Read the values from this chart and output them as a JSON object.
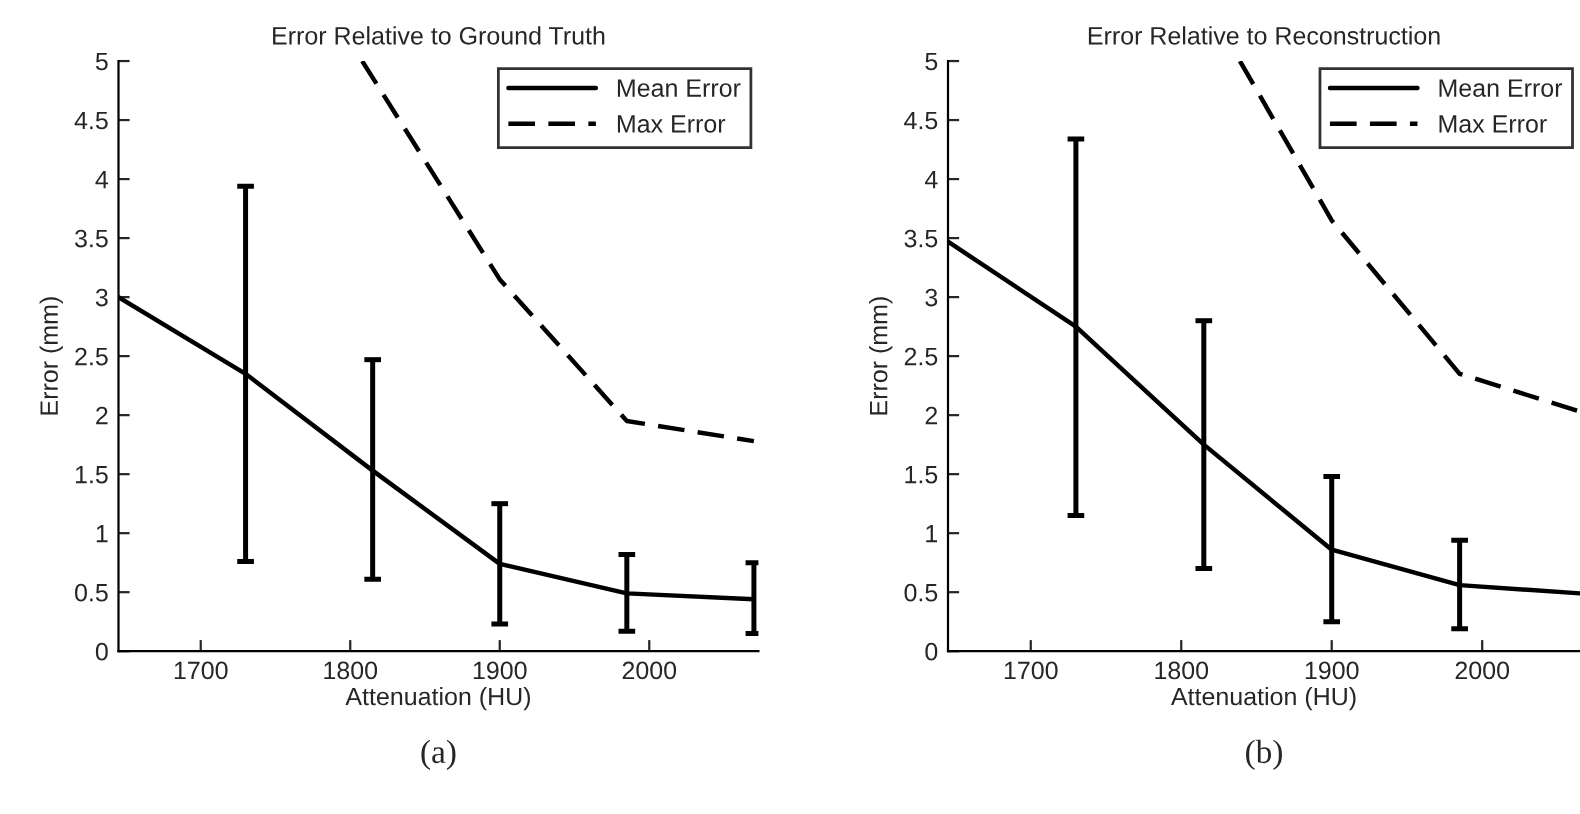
{
  "chart_data": [
    {
      "type": "line",
      "title": "Error Relative to Ground Truth",
      "xlabel": "Attenuation (HU)",
      "ylabel": "Error (mm)",
      "annotations": [
        "(a)"
      ],
      "xlim": [
        1645,
        2073
      ],
      "xticks": [
        1700,
        1800,
        1900,
        2000
      ],
      "ylim": [
        0,
        5
      ],
      "yticks": [
        0,
        0.5,
        1,
        1.5,
        2,
        2.5,
        3,
        3.5,
        4,
        4.5,
        5
      ],
      "grid": false,
      "legend": "top right",
      "series": [
        {
          "name": "Mean Error",
          "color": "#000000",
          "line_style": "solid",
          "x": [
            1645,
            1730,
            1815,
            1900,
            1985,
            2070
          ],
          "values": [
            3.0,
            2.35,
            1.53,
            0.74,
            0.49,
            0.44
          ],
          "errors": [
            null,
            [
              0.76,
              3.94
            ],
            [
              0.61,
              2.47
            ],
            [
              0.23,
              1.25
            ],
            [
              0.17,
              0.82
            ],
            [
              0.15,
              0.75
            ]
          ]
        },
        {
          "name": "Max Error",
          "color": "#000000",
          "line_style": "dashed",
          "x": [
            1808,
            1900,
            1985,
            2070
          ],
          "values": [
            5.0,
            3.15,
            1.95,
            1.78
          ]
        }
      ]
    },
    {
      "type": "line",
      "title": "Error Relative to Reconstruction",
      "xlabel": "Attenuation (HU)",
      "ylabel": "Error (mm)",
      "annotations": [
        "(b)"
      ],
      "xlim": [
        1645,
        2065
      ],
      "xticks": [
        1700,
        1800,
        1900,
        2000
      ],
      "ylim": [
        0,
        5
      ],
      "yticks": [
        0,
        0.5,
        1,
        1.5,
        2,
        2.5,
        3,
        3.5,
        4,
        4.5,
        5
      ],
      "grid": false,
      "legend": "top right",
      "series": [
        {
          "name": "Mean Error",
          "color": "#000000",
          "line_style": "solid",
          "x": [
            1645,
            1730,
            1815,
            1900,
            1985,
            2065
          ],
          "values": [
            3.47,
            2.75,
            1.75,
            0.86,
            0.56,
            0.49
          ],
          "errors": [
            null,
            [
              1.15,
              4.34
            ],
            [
              0.7,
              2.8
            ],
            [
              0.25,
              1.48
            ],
            [
              0.19,
              0.94
            ],
            null
          ]
        },
        {
          "name": "Max Error",
          "color": "#000000",
          "line_style": "dashed",
          "x": [
            1839,
            1900,
            1985,
            2065
          ],
          "values": [
            5.0,
            3.65,
            2.35,
            2.03
          ]
        }
      ]
    }
  ]
}
